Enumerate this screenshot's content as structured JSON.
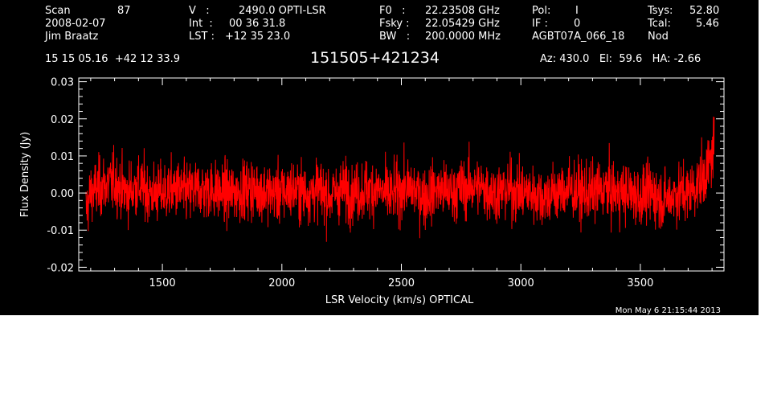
{
  "header": {
    "scan_label": "Scan",
    "scan_value": "87",
    "date": "2008-02-07",
    "observer": "Jim Braatz",
    "v_label": "V   :",
    "v_value": "2490.0 OPTI-LSR",
    "int_label": "Int  :",
    "int_value": "00 36 31.8",
    "lst_label": "LST :",
    "lst_value": "+12 35 23.0",
    "f0_label": "F0   :",
    "f0_value": "22.23508 GHz",
    "fsky_label": "Fsky :",
    "fsky_value": "22.05429 GHz",
    "bw_label": "BW   :",
    "bw_value": "200.0000 MHz",
    "pol_label": "Pol:",
    "pol_value": "I",
    "if_label": "IF :",
    "if_value": "0",
    "project": "AGBT07A_066_18",
    "tsys_label": "Tsys:",
    "tsys_value": "52.80",
    "tcal_label": "Tcal:",
    "tcal_value": "5.46",
    "mode": "Nod",
    "coords": "15 15 05.16  +42 12 33.9",
    "source": "151505+421234",
    "az_el_ha": "Az: 430.0   El:  59.6   HA: -2.66",
    "timestamp": "Mon May  6 21:15:44 2013"
  },
  "chart_data": {
    "type": "line",
    "title": "151505+421234",
    "xlabel": "LSR Velocity (km/s) OPTICAL",
    "ylabel": "Flux Density (Jy)",
    "xlim": [
      1150,
      3850
    ],
    "ylim": [
      -0.021,
      0.031
    ],
    "xticks": [
      1500,
      2000,
      2500,
      3000,
      3500
    ],
    "xtick_labels": [
      "1500",
      "2000",
      "2500",
      "3000",
      "3500"
    ],
    "yticks": [
      -0.02,
      -0.01,
      0.0,
      0.01,
      0.02,
      0.03
    ],
    "ytick_labels": [
      "-0.02",
      "-0.01",
      "0.00",
      "0.01",
      "0.02",
      "0.03"
    ],
    "grid": false,
    "series_color": "#ff0000",
    "series": [
      {
        "x": [
          1180,
          1200,
          1250,
          1300,
          1350,
          1400,
          1450,
          1500,
          1550,
          1600,
          1650,
          1700,
          1750,
          1800,
          1850,
          1900,
          1950,
          2000,
          2050,
          2100,
          2150,
          2200,
          2250,
          2300,
          2350,
          2400,
          2450,
          2500,
          2550,
          2600,
          2650,
          2700,
          2750,
          2800,
          2850,
          2900,
          2950,
          3000,
          3050,
          3100,
          3150,
          3200,
          3250,
          3300,
          3350,
          3400,
          3450,
          3500,
          3550,
          3600,
          3650,
          3700,
          3750,
          3780,
          3800,
          3810
        ],
        "y": [
          -0.005,
          0.0,
          0.002,
          0.003,
          0.0,
          0.002,
          0.0,
          0.0,
          0.001,
          0.0,
          0.001,
          0.001,
          0.0,
          0.0,
          0.001,
          0.001,
          0.0,
          0.0,
          0.001,
          0.0,
          0.001,
          -0.001,
          0.001,
          0.0,
          0.001,
          0.001,
          -0.001,
          0.001,
          0.001,
          -0.001,
          0.001,
          0.0,
          0.001,
          0.002,
          0.001,
          0.0,
          0.001,
          0.0,
          0.0,
          -0.001,
          0.0,
          0.001,
          0.0,
          0.0,
          0.001,
          0.0,
          0.0,
          -0.001,
          0.0,
          -0.002,
          0.0,
          0.0,
          0.003,
          0.006,
          0.01,
          0.015
        ],
        "noise_rms": 0.004
      }
    ]
  }
}
